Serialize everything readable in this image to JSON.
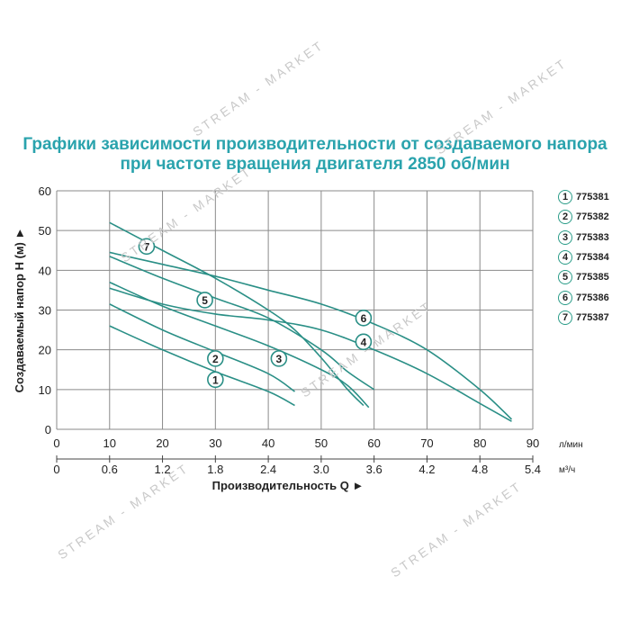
{
  "title": {
    "line1": "Графики зависимости производительности от создаваемого напора",
    "line2": "при частоте вращения двигателя 2850 об/мин"
  },
  "colors": {
    "title": "#2aa3ad",
    "curve": "#2a8f86",
    "grid": "#8a8a8a",
    "text": "#222222"
  },
  "watermark_text": "STREAM - MARKET",
  "chart_data": {
    "type": "line",
    "xlabel": "Производительность Q ►",
    "ylabel": "Создаваемый напор H (м) ►",
    "x_unit_primary": "л/мин",
    "x_unit_secondary": "м³/ч",
    "xlim": [
      0,
      90
    ],
    "ylim": [
      0,
      60
    ],
    "x_ticks": [
      "0",
      "10",
      "20",
      "30",
      "40",
      "50",
      "60",
      "70",
      "80",
      "90"
    ],
    "x_ticks_secondary": [
      "0",
      "0.6",
      "1.2",
      "1.8",
      "2.4",
      "3.0",
      "3.6",
      "4.2",
      "4.8",
      "5.4"
    ],
    "y_ticks": [
      "0",
      "10",
      "20",
      "30",
      "40",
      "50",
      "60"
    ],
    "grid": true,
    "legend_position": "right",
    "series": [
      {
        "name": "775381",
        "marker": "1",
        "x": [
          10,
          20,
          30,
          40,
          45
        ],
        "y": [
          26,
          20,
          14.5,
          9.5,
          6
        ],
        "label_at": [
          30,
          12.5
        ]
      },
      {
        "name": "775382",
        "marker": "2",
        "x": [
          10,
          20,
          30,
          40,
          45
        ],
        "y": [
          31.5,
          25,
          19.5,
          14,
          9.5
        ],
        "label_at": [
          30,
          17.8
        ]
      },
      {
        "name": "775383",
        "marker": "3",
        "x": [
          10,
          20,
          30,
          40,
          50,
          55,
          59
        ],
        "y": [
          37,
          31,
          26,
          21,
          15,
          11,
          5.5
        ],
        "label_at": [
          42,
          17.8
        ]
      },
      {
        "name": "775384",
        "marker": "4",
        "x": [
          10,
          20,
          30,
          40,
          50,
          60,
          70,
          80,
          86
        ],
        "y": [
          35.5,
          31.5,
          29,
          27.5,
          25,
          20,
          14,
          6.5,
          2
        ],
        "label_at": [
          58,
          22
        ]
      },
      {
        "name": "775385",
        "marker": "5",
        "x": [
          10,
          20,
          30,
          40,
          50,
          55,
          60
        ],
        "y": [
          43.5,
          38,
          33,
          28,
          20,
          14.5,
          10
        ],
        "label_at": [
          28,
          32.5
        ]
      },
      {
        "name": "775386",
        "marker": "6",
        "x": [
          10,
          20,
          30,
          40,
          50,
          60,
          70,
          80,
          86
        ],
        "y": [
          44.5,
          41.5,
          38.5,
          35,
          31.5,
          26.5,
          20,
          10,
          2.5
        ],
        "label_at": [
          58,
          28
        ]
      },
      {
        "name": "775387",
        "marker": "7",
        "x": [
          10,
          20,
          30,
          40,
          45,
          50,
          55,
          58
        ],
        "y": [
          52,
          45,
          38,
          30,
          25,
          18,
          10,
          6
        ],
        "label_at": [
          17,
          46
        ]
      }
    ]
  }
}
